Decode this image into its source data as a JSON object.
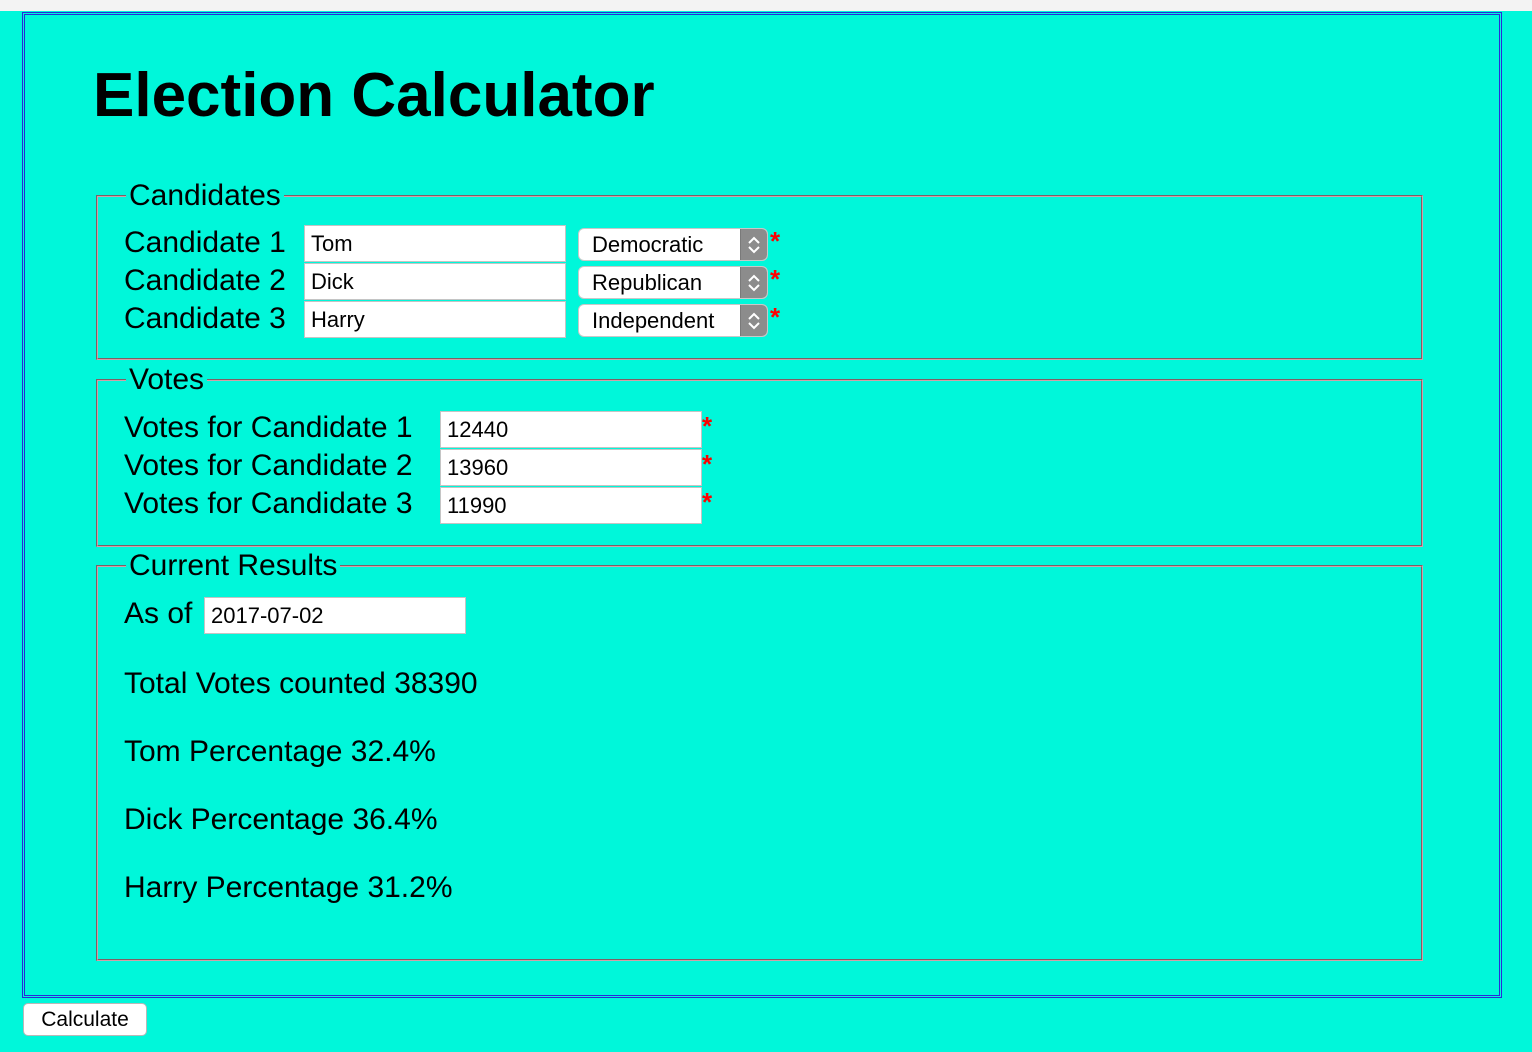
{
  "title": "Election Calculator",
  "candidates": {
    "legend": "Candidates",
    "rows": [
      {
        "label": "Candidate 1",
        "name": "Tom",
        "party": "Democratic"
      },
      {
        "label": "Candidate 2",
        "name": "Dick",
        "party": "Republican"
      },
      {
        "label": "Candidate 3",
        "name": "Harry",
        "party": "Independent"
      }
    ]
  },
  "votes": {
    "legend": "Votes",
    "rows": [
      {
        "label": "Votes for Candidate 1",
        "value": "12440"
      },
      {
        "label": "Votes for Candidate 2",
        "value": "13960"
      },
      {
        "label": "Votes for Candidate 3",
        "value": "11990"
      }
    ]
  },
  "results": {
    "legend": "Current Results",
    "as_of_label": "As of",
    "as_of_value": "2017-07-02",
    "total_line": "Total Votes counted 38390",
    "percentages": [
      "Tom Percentage 32.4%",
      "Dick Percentage 36.4%",
      "Harry Percentage 31.2%"
    ]
  },
  "required_marker": "*",
  "calculate_label": "Calculate",
  "colors": {
    "background": "#00f7da",
    "frame_border": "#2a2ad9",
    "required": "#ff0000"
  },
  "icons": {
    "select_arrows": "up-down-chevron-icon"
  }
}
